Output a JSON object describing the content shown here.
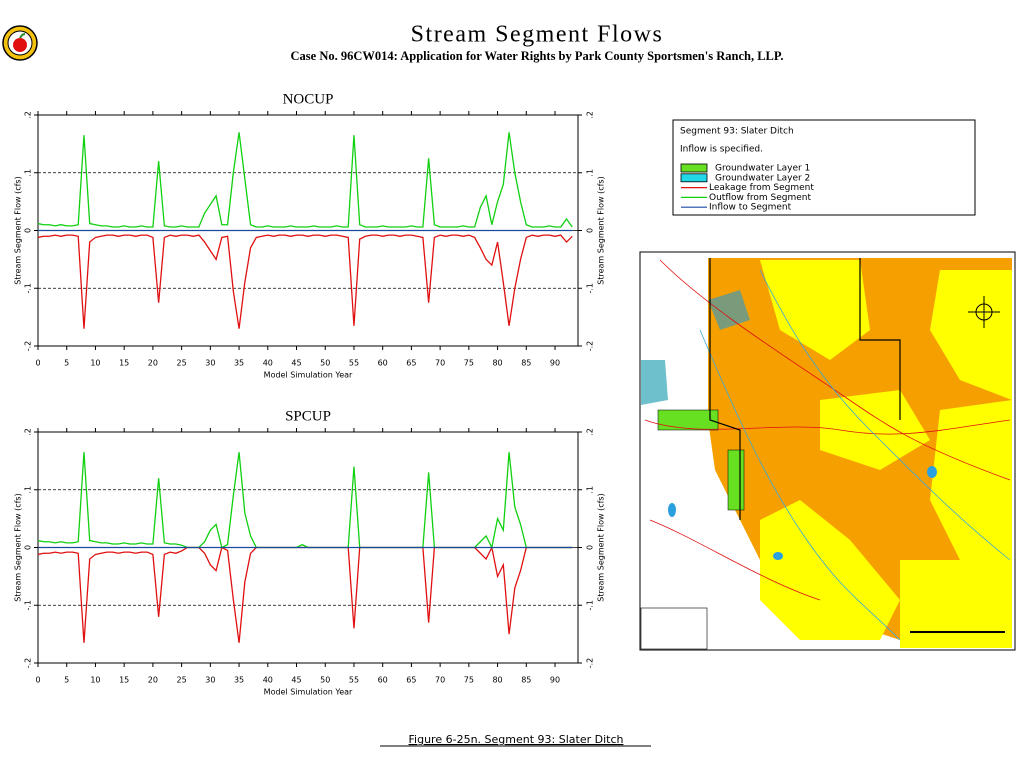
{
  "header": {
    "title": "Stream Segment Flows",
    "subtitle": "Case No. 96CW014: Application for Water Rights by Park County Sportsmen's Ranch, LLP."
  },
  "caption": "Figure 6-25n.  Segment 93: Slater Ditch",
  "legend": {
    "title": "Segment 93: Slater Ditch",
    "note": "Inflow is specified.",
    "patches": [
      {
        "label": "Groundwater Layer 1",
        "color": "#66e020"
      },
      {
        "label": "Groundwater Layer 2",
        "color": "#22d8e8"
      }
    ]
  },
  "chart_data": [
    {
      "type": "line",
      "title": "NOCUP",
      "xlabel": "Model Simulation Year",
      "ylabel": "Stream Segment Flow (cfs)",
      "xlim": [
        0,
        94
      ],
      "xticks": [
        0,
        5,
        10,
        15,
        20,
        25,
        30,
        35,
        40,
        45,
        50,
        55,
        60,
        65,
        70,
        75,
        80,
        85,
        90
      ],
      "ylim": [
        -0.2,
        0.2
      ],
      "yticks": [
        {
          "value": -0.2,
          "label": "-.2"
        },
        {
          "value": -0.1,
          "label": "-.1"
        },
        0,
        {
          "value": 0.1,
          "label": ".1"
        },
        {
          "value": 0.2,
          "label": ".2"
        }
      ],
      "grid": "dashed",
      "x": [
        0,
        1,
        2,
        3,
        4,
        5,
        6,
        7,
        8,
        9,
        10,
        11,
        12,
        13,
        14,
        15,
        16,
        17,
        18,
        19,
        20,
        21,
        22,
        23,
        24,
        25,
        26,
        27,
        28,
        29,
        30,
        31,
        32,
        33,
        34,
        35,
        36,
        37,
        38,
        39,
        40,
        41,
        42,
        43,
        44,
        45,
        46,
        47,
        48,
        49,
        50,
        51,
        52,
        53,
        54,
        55,
        56,
        57,
        58,
        59,
        60,
        61,
        62,
        63,
        64,
        65,
        66,
        67,
        68,
        69,
        70,
        71,
        72,
        73,
        74,
        75,
        76,
        77,
        78,
        79,
        80,
        81,
        82,
        83,
        84,
        85,
        86,
        87,
        88,
        89,
        90,
        91,
        92,
        93
      ],
      "series": [
        {
          "name": "Leakage from Segment",
          "color": "#e01010",
          "values": [
            -0.012,
            -0.01,
            -0.01,
            -0.008,
            -0.01,
            -0.008,
            -0.008,
            -0.01,
            -0.17,
            -0.02,
            -0.012,
            -0.01,
            -0.008,
            -0.008,
            -0.01,
            -0.008,
            -0.008,
            -0.01,
            -0.008,
            -0.008,
            -0.012,
            -0.125,
            -0.012,
            -0.008,
            -0.01,
            -0.008,
            -0.008,
            -0.01,
            -0.008,
            -0.02,
            -0.035,
            -0.05,
            -0.012,
            -0.01,
            -0.105,
            -0.17,
            -0.09,
            -0.03,
            -0.012,
            -0.01,
            -0.008,
            -0.01,
            -0.008,
            -0.008,
            -0.01,
            -0.008,
            -0.008,
            -0.01,
            -0.008,
            -0.008,
            -0.01,
            -0.008,
            -0.008,
            -0.01,
            -0.012,
            -0.165,
            -0.015,
            -0.01,
            -0.008,
            -0.008,
            -0.01,
            -0.008,
            -0.008,
            -0.01,
            -0.008,
            -0.008,
            -0.01,
            -0.012,
            -0.125,
            -0.012,
            -0.008,
            -0.01,
            -0.008,
            -0.008,
            -0.01,
            -0.008,
            -0.012,
            -0.03,
            -0.05,
            -0.06,
            -0.02,
            -0.09,
            -0.165,
            -0.1,
            -0.05,
            -0.012,
            -0.008,
            -0.01,
            -0.008,
            -0.008,
            -0.01,
            -0.008,
            -0.02,
            -0.01
          ]
        },
        {
          "name": "Outflow from Segment",
          "color": "#10d010",
          "values": [
            0.012,
            0.01,
            0.01,
            0.008,
            0.01,
            0.008,
            0.008,
            0.01,
            0.165,
            0.012,
            0.01,
            0.008,
            0.008,
            0.006,
            0.006,
            0.008,
            0.006,
            0.006,
            0.008,
            0.006,
            0.006,
            0.12,
            0.008,
            0.006,
            0.006,
            0.008,
            0.006,
            0.006,
            0.006,
            0.03,
            0.045,
            0.06,
            0.01,
            0.01,
            0.1,
            0.17,
            0.09,
            0.01,
            0.006,
            0.006,
            0.008,
            0.006,
            0.006,
            0.006,
            0.008,
            0.006,
            0.006,
            0.006,
            0.008,
            0.006,
            0.006,
            0.006,
            0.008,
            0.006,
            0.006,
            0.165,
            0.01,
            0.006,
            0.006,
            0.006,
            0.008,
            0.006,
            0.006,
            0.006,
            0.006,
            0.008,
            0.006,
            0.006,
            0.125,
            0.01,
            0.006,
            0.006,
            0.006,
            0.006,
            0.008,
            0.006,
            0.006,
            0.04,
            0.06,
            0.01,
            0.05,
            0.08,
            0.17,
            0.1,
            0.05,
            0.01,
            0.006,
            0.006,
            0.006,
            0.008,
            0.006,
            0.006,
            0.02,
            0.006
          ]
        },
        {
          "name": "Inflow to Segment",
          "color": "#1a4aa0",
          "values": [
            0,
            0,
            0,
            0,
            0,
            0,
            0,
            0,
            0,
            0,
            0,
            0,
            0,
            0,
            0,
            0,
            0,
            0,
            0,
            0,
            0,
            0,
            0,
            0,
            0,
            0,
            0,
            0,
            0,
            0,
            0,
            0,
            0,
            0,
            0,
            0,
            0,
            0,
            0,
            0,
            0,
            0,
            0,
            0,
            0,
            0,
            0,
            0,
            0,
            0,
            0,
            0,
            0,
            0,
            0,
            0,
            0,
            0,
            0,
            0,
            0,
            0,
            0,
            0,
            0,
            0,
            0,
            0,
            0,
            0,
            0,
            0,
            0,
            0,
            0,
            0,
            0,
            0,
            0,
            0,
            0,
            0,
            0,
            0,
            0,
            0,
            0,
            0,
            0,
            0,
            0,
            0,
            0,
            0
          ]
        }
      ]
    },
    {
      "type": "line",
      "title": "SPCUP",
      "xlabel": "Model Simulation Year",
      "ylabel": "Stream Segment Flow (cfs)",
      "xlim": [
        0,
        94
      ],
      "xticks": [
        0,
        5,
        10,
        15,
        20,
        25,
        30,
        35,
        40,
        45,
        50,
        55,
        60,
        65,
        70,
        75,
        80,
        85,
        90
      ],
      "ylim": [
        -0.2,
        0.2
      ],
      "yticks": [
        {
          "value": -0.2,
          "label": "-.2"
        },
        {
          "value": -0.1,
          "label": "-.1"
        },
        0,
        {
          "value": 0.1,
          "label": ".1"
        },
        {
          "value": 0.2,
          "label": ".2"
        }
      ],
      "grid": "dashed",
      "x": [
        0,
        1,
        2,
        3,
        4,
        5,
        6,
        7,
        8,
        9,
        10,
        11,
        12,
        13,
        14,
        15,
        16,
        17,
        18,
        19,
        20,
        21,
        22,
        23,
        24,
        25,
        26,
        27,
        28,
        29,
        30,
        31,
        32,
        33,
        34,
        35,
        36,
        37,
        38,
        39,
        40,
        41,
        42,
        43,
        44,
        45,
        46,
        47,
        48,
        49,
        50,
        51,
        52,
        53,
        54,
        55,
        56,
        57,
        58,
        59,
        60,
        61,
        62,
        63,
        64,
        65,
        66,
        67,
        68,
        69,
        70,
        71,
        72,
        73,
        74,
        75,
        76,
        77,
        78,
        79,
        80,
        81,
        82,
        83,
        84,
        85,
        86,
        87,
        88,
        89,
        90,
        91,
        92,
        93
      ],
      "series": [
        {
          "color": "#e01010",
          "values": [
            -0.012,
            -0.01,
            -0.01,
            -0.008,
            -0.01,
            -0.008,
            -0.008,
            -0.01,
            -0.165,
            -0.02,
            -0.012,
            -0.01,
            -0.008,
            -0.008,
            -0.01,
            -0.008,
            -0.008,
            -0.01,
            -0.008,
            -0.008,
            -0.012,
            -0.12,
            -0.012,
            -0.008,
            -0.01,
            -0.006,
            0,
            0,
            0,
            -0.01,
            -0.03,
            -0.04,
            0,
            -0.005,
            -0.09,
            -0.165,
            -0.06,
            -0.01,
            0,
            0,
            0,
            0,
            0,
            0,
            0,
            0,
            0,
            0,
            0,
            0,
            0,
            0,
            0,
            0,
            0,
            -0.14,
            0,
            0,
            0,
            0,
            0,
            0,
            0,
            0,
            0,
            0,
            0,
            0,
            -0.13,
            0,
            0,
            0,
            0,
            0,
            0,
            0,
            0,
            -0.01,
            -0.02,
            0,
            -0.05,
            -0.03,
            -0.15,
            -0.07,
            -0.04,
            0,
            0,
            0,
            0,
            0,
            0,
            0,
            0,
            0
          ]
        },
        {
          "color": "#10d010",
          "values": [
            0.012,
            0.01,
            0.01,
            0.008,
            0.01,
            0.008,
            0.008,
            0.01,
            0.165,
            0.012,
            0.01,
            0.008,
            0.008,
            0.006,
            0.006,
            0.008,
            0.006,
            0.006,
            0.008,
            0.006,
            0.006,
            0.12,
            0.008,
            0.006,
            0.006,
            0.004,
            0,
            0,
            0,
            0.01,
            0.03,
            0.04,
            0,
            0.005,
            0.09,
            0.165,
            0.06,
            0.02,
            0,
            0,
            0,
            0,
            0,
            0,
            0,
            0,
            0.005,
            0,
            0,
            0,
            0,
            0,
            0,
            0,
            0,
            0.14,
            0,
            0,
            0,
            0,
            0,
            0,
            0,
            0,
            0,
            0,
            0,
            0,
            0.13,
            0,
            0,
            0,
            0,
            0,
            0,
            0,
            0,
            0.01,
            0.02,
            0,
            0.05,
            0.03,
            0.165,
            0.07,
            0.04,
            0,
            0,
            0,
            0,
            0,
            0,
            0,
            0,
            0
          ]
        },
        {
          "color": "#1a4aa0",
          "values": [
            0,
            0,
            0,
            0,
            0,
            0,
            0,
            0,
            0,
            0,
            0,
            0,
            0,
            0,
            0,
            0,
            0,
            0,
            0,
            0,
            0,
            0,
            0,
            0,
            0,
            0,
            0,
            0,
            0,
            0,
            0,
            0,
            0,
            0,
            0,
            0,
            0,
            0,
            0,
            0,
            0,
            0,
            0,
            0,
            0,
            0,
            0,
            0,
            0,
            0,
            0,
            0,
            0,
            0,
            0,
            0,
            0,
            0,
            0,
            0,
            0,
            0,
            0,
            0,
            0,
            0,
            0,
            0,
            0,
            0,
            0,
            0,
            0,
            0,
            0,
            0,
            0,
            0,
            0,
            0,
            0,
            0,
            0,
            0,
            0,
            0,
            0,
            0,
            0,
            0,
            0,
            0,
            0,
            0
          ]
        }
      ]
    }
  ]
}
